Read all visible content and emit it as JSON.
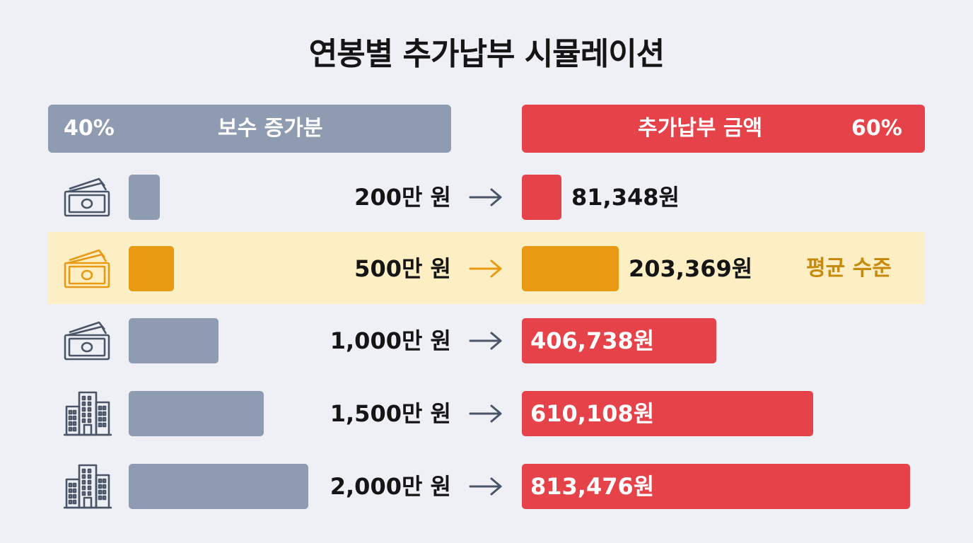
{
  "title": "연봉별 추가납부 시뮬레이션",
  "header": {
    "left_percent": "40%",
    "left_label": "보수 증가분",
    "right_label": "추가납부 금액",
    "right_percent": "60%"
  },
  "colors": {
    "left_bar": "#8e9bb0",
    "right_bar": "#e5424a",
    "highlight_bar": "#e89a12",
    "highlight_bg": "#fdeec3",
    "highlight_text": "#c78a0c",
    "icon_stroke": "#4a5568"
  },
  "chart_data": {
    "type": "bar",
    "categories": [
      "200만 원",
      "500만 원",
      "1,000만 원",
      "1,500만 원",
      "2,000만 원"
    ],
    "series": [
      {
        "name": "보수 증가분",
        "values": [
          200,
          500,
          1000,
          1500,
          2000
        ]
      },
      {
        "name": "추가납부 금액",
        "values": [
          81348,
          203369,
          406738,
          610108,
          813476
        ]
      }
    ],
    "value_labels": [
      "81,348원",
      "203,369원",
      "406,738원",
      "610,108원",
      "813,476원"
    ],
    "icons": [
      "money-icon",
      "money-icon",
      "money-icon",
      "building-icon",
      "building-icon"
    ],
    "highlight_index": 1,
    "highlight_note": "평균 수준"
  }
}
